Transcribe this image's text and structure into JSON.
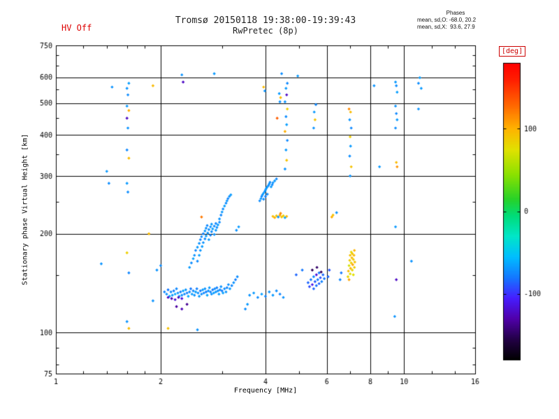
{
  "header": {
    "hv_status": "HV Off",
    "title_line1": "Tromsø 20150118 19:38:00-19:39:43",
    "title_line2": "RwPretec (8p)",
    "phases_title": "Phases",
    "phases_o": "mean, sd,O: -68.0, 20.2",
    "phases_x": "mean, sd,X:  93.6, 27.9"
  },
  "chart_data": {
    "type": "scatter",
    "title": "Tromsø 20150118 19:38:00-19:39:43  RwPretec (8p)",
    "xlabel": "Frequency [MHz]",
    "ylabel": "Stationary phase Virtual Height [km]",
    "x_scale": "log",
    "y_scale": "log",
    "xlim": [
      1,
      16
    ],
    "ylim": [
      75,
      750
    ],
    "x_ticks": [
      1,
      2,
      4,
      6,
      8,
      10,
      16
    ],
    "y_ticks": [
      75,
      100,
      200,
      300,
      400,
      500,
      600,
      750
    ],
    "x_gridlines": [
      2,
      4,
      6,
      8,
      10
    ],
    "y_gridlines": [
      100,
      200,
      300,
      400,
      500,
      600
    ],
    "x_minor": [
      1.2,
      1.4,
      1.6,
      1.8,
      3,
      5,
      7,
      9,
      12,
      14
    ],
    "y_minor": [
      80,
      90,
      150,
      250,
      350,
      450,
      550,
      650,
      700
    ],
    "grid": true,
    "marker": "diamond",
    "colorbar": {
      "label": "[deg]",
      "label_color": "#cc0000",
      "min": -180,
      "max": 180,
      "ticks": [
        100,
        0,
        -100
      ]
    },
    "point_format": [
      "frequency_MHz",
      "virtual_height_km",
      "phase_deg"
    ],
    "points": [
      [
        2.05,
        133,
        -75
      ],
      [
        2.08,
        131,
        -70
      ],
      [
        2.1,
        135,
        -80
      ],
      [
        2.12,
        129,
        -65
      ],
      [
        2.14,
        133,
        -72
      ],
      [
        2.16,
        130,
        -68
      ],
      [
        2.18,
        134,
        -78
      ],
      [
        2.2,
        131,
        -62
      ],
      [
        2.22,
        136,
        -74
      ],
      [
        2.24,
        132,
        -70
      ],
      [
        2.26,
        129,
        -66
      ],
      [
        2.28,
        133,
        -76
      ],
      [
        2.3,
        130,
        -71
      ],
      [
        2.32,
        134,
        -64
      ],
      [
        2.34,
        131,
        -73
      ],
      [
        2.36,
        135,
        -69
      ],
      [
        2.38,
        132,
        -77
      ],
      [
        2.4,
        129,
        -63
      ],
      [
        2.42,
        133,
        -72
      ],
      [
        2.44,
        136,
        -80
      ],
      [
        2.46,
        131,
        -67
      ],
      [
        2.48,
        134,
        -74
      ],
      [
        2.5,
        130,
        -70
      ],
      [
        2.52,
        133,
        -65
      ],
      [
        2.54,
        136,
        -76
      ],
      [
        2.56,
        132,
        -71
      ],
      [
        2.58,
        129,
        -68
      ],
      [
        2.6,
        134,
        -79
      ],
      [
        2.62,
        131,
        -72
      ],
      [
        2.64,
        135,
        -66
      ],
      [
        2.66,
        132,
        -74
      ],
      [
        2.68,
        136,
        -70
      ],
      [
        2.7,
        133,
        -77
      ],
      [
        2.72,
        130,
        -64
      ],
      [
        2.74,
        134,
        -71
      ],
      [
        2.76,
        137,
        -68
      ],
      [
        2.78,
        133,
        -75
      ],
      [
        2.8,
        131,
        -70
      ],
      [
        2.82,
        135,
        -78
      ],
      [
        2.84,
        132,
        -66
      ],
      [
        2.86,
        136,
        -73
      ],
      [
        2.88,
        133,
        -69
      ],
      [
        2.9,
        137,
        -76
      ],
      [
        2.92,
        134,
        -71
      ],
      [
        2.94,
        131,
        -67
      ],
      [
        2.96,
        135,
        -74
      ],
      [
        2.98,
        138,
        -70
      ],
      [
        3.0,
        134,
        -78
      ],
      [
        3.02,
        132,
        -65
      ],
      [
        3.05,
        136,
        -72
      ],
      [
        3.08,
        133,
        -69
      ],
      [
        3.1,
        137,
        -75
      ],
      [
        3.13,
        140,
        -71
      ],
      [
        3.16,
        136,
        -67
      ],
      [
        3.2,
        139,
        -74
      ],
      [
        3.24,
        142,
        -70
      ],
      [
        3.28,
        145,
        -77
      ],
      [
        3.32,
        148,
        -72
      ],
      [
        2.1,
        128,
        -122
      ],
      [
        2.15,
        127,
        -128
      ],
      [
        2.2,
        126,
        -118
      ],
      [
        2.25,
        128,
        -124
      ],
      [
        2.3,
        127,
        -115
      ],
      [
        2.22,
        120,
        -132
      ],
      [
        2.3,
        118,
        -126
      ],
      [
        2.38,
        122,
        -136
      ],
      [
        2.42,
        158,
        -68
      ],
      [
        2.45,
        163,
        -72
      ],
      [
        2.48,
        168,
        -65
      ],
      [
        2.5,
        172,
        -70
      ],
      [
        2.52,
        178,
        -75
      ],
      [
        2.55,
        182,
        -68
      ],
      [
        2.55,
        165,
        -73
      ],
      [
        2.58,
        187,
        -70
      ],
      [
        2.58,
        172,
        -66
      ],
      [
        2.6,
        192,
        -74
      ],
      [
        2.6,
        178,
        -69
      ],
      [
        2.62,
        196,
        -72
      ],
      [
        2.63,
        183,
        -67
      ],
      [
        2.65,
        200,
        -75
      ],
      [
        2.65,
        188,
        -70
      ],
      [
        2.68,
        204,
        -68
      ],
      [
        2.68,
        193,
        -73
      ],
      [
        2.7,
        208,
        -71
      ],
      [
        2.7,
        197,
        -66
      ],
      [
        2.72,
        212,
        -74
      ],
      [
        2.73,
        201,
        -69
      ],
      [
        2.75,
        206,
        -72
      ],
      [
        2.75,
        192,
        -67
      ],
      [
        2.78,
        210,
        -70
      ],
      [
        2.78,
        198,
        -75
      ],
      [
        2.8,
        214,
        -68
      ],
      [
        2.8,
        203,
        -72
      ],
      [
        2.82,
        207,
        -66
      ],
      [
        2.85,
        211,
        -73
      ],
      [
        2.85,
        199,
        -70
      ],
      [
        2.88,
        215,
        -74
      ],
      [
        2.88,
        205,
        -68
      ],
      [
        2.9,
        209,
        -71
      ],
      [
        2.92,
        213,
        -67
      ],
      [
        2.95,
        217,
        -72
      ],
      [
        2.95,
        222,
        -70
      ],
      [
        2.98,
        228,
        -74
      ],
      [
        3.0,
        233,
        -68
      ],
      [
        3.02,
        238,
        -72
      ],
      [
        3.05,
        243,
        -66
      ],
      [
        3.08,
        248,
        -73
      ],
      [
        3.1,
        252,
        -69
      ],
      [
        3.12,
        256,
        -75
      ],
      [
        3.15,
        260,
        -70
      ],
      [
        3.18,
        263,
        -67
      ],
      [
        3.85,
        252,
        -72
      ],
      [
        3.88,
        256,
        -68
      ],
      [
        3.9,
        260,
        -74
      ],
      [
        3.92,
        263,
        -70
      ],
      [
        3.95,
        266,
        -66
      ],
      [
        3.95,
        255,
        -73
      ],
      [
        3.98,
        269,
        -71
      ],
      [
        4.0,
        272,
        -68
      ],
      [
        4.0,
        260,
        -75
      ],
      [
        4.02,
        275,
        -70
      ],
      [
        4.05,
        278,
        -66
      ],
      [
        4.05,
        264,
        -72
      ],
      [
        4.08,
        281,
        -74
      ],
      [
        4.1,
        284,
        -69
      ],
      [
        4.12,
        287,
        -72
      ],
      [
        4.15,
        278,
        -67
      ],
      [
        4.18,
        282,
        -73
      ],
      [
        4.2,
        286,
        -70
      ],
      [
        4.25,
        290,
        -68
      ],
      [
        4.3,
        294,
        -74
      ],
      [
        4.2,
        226,
        95
      ],
      [
        4.25,
        224,
        102
      ],
      [
        4.3,
        227,
        88
      ],
      [
        4.35,
        225,
        -70
      ],
      [
        4.4,
        228,
        108
      ],
      [
        4.45,
        225,
        92
      ],
      [
        4.5,
        227,
        85
      ],
      [
        4.55,
        224,
        -65
      ],
      [
        4.6,
        226,
        98
      ],
      [
        4.42,
        231,
        115
      ],
      [
        1.6,
        108,
        -70
      ],
      [
        1.62,
        103,
        96
      ],
      [
        1.62,
        152,
        -75
      ],
      [
        1.6,
        175,
        85
      ],
      [
        1.61,
        268,
        -72
      ],
      [
        1.6,
        285,
        -68
      ],
      [
        1.62,
        340,
        96
      ],
      [
        1.6,
        360,
        -74
      ],
      [
        1.61,
        420,
        -70
      ],
      [
        1.6,
        450,
        -122
      ],
      [
        1.62,
        475,
        102
      ],
      [
        1.6,
        490,
        -68
      ],
      [
        1.61,
        530,
        -73
      ],
      [
        1.6,
        555,
        -70
      ],
      [
        1.62,
        575,
        -66
      ],
      [
        5.3,
        142,
        -85
      ],
      [
        5.35,
        138,
        -92
      ],
      [
        5.4,
        145,
        -80
      ],
      [
        5.45,
        140,
        -112
      ],
      [
        5.5,
        136,
        -85
      ],
      [
        5.5,
        148,
        -75
      ],
      [
        5.55,
        143,
        -88
      ],
      [
        5.6,
        139,
        -82
      ],
      [
        5.6,
        150,
        -116
      ],
      [
        5.65,
        145,
        -78
      ],
      [
        5.7,
        141,
        -86
      ],
      [
        5.7,
        152,
        -80
      ],
      [
        5.75,
        147,
        -92
      ],
      [
        5.8,
        143,
        -76
      ],
      [
        5.85,
        150,
        -84
      ],
      [
        5.9,
        146,
        -80
      ],
      [
        5.45,
        155,
        -150
      ],
      [
        5.62,
        158,
        -146
      ],
      [
        5.78,
        153,
        -148
      ],
      [
        5.5,
        420,
        -70
      ],
      [
        5.55,
        445,
        92
      ],
      [
        5.52,
        470,
        -68
      ],
      [
        5.58,
        495,
        -74
      ],
      [
        6.9,
        148,
        80
      ],
      [
        6.92,
        154,
        96
      ],
      [
        6.95,
        160,
        70
      ],
      [
        6.95,
        145,
        106
      ],
      [
        6.98,
        166,
        88
      ],
      [
        7.0,
        151,
        75
      ],
      [
        7.0,
        172,
        92
      ],
      [
        7.02,
        157,
        100
      ],
      [
        7.05,
        163,
        85
      ],
      [
        7.05,
        176,
        78
      ],
      [
        7.08,
        169,
        96
      ],
      [
        7.1,
        155,
        82
      ],
      [
        7.1,
        174,
        90
      ],
      [
        7.12,
        161,
        106
      ],
      [
        7.15,
        167,
        88
      ],
      [
        7.15,
        150,
        75
      ],
      [
        7.18,
        172,
        96
      ],
      [
        7.2,
        158,
        85
      ],
      [
        7.2,
        178,
        100
      ],
      [
        7.22,
        164,
        92
      ],
      [
        7.0,
        300,
        -70
      ],
      [
        7.05,
        320,
        92
      ],
      [
        6.98,
        345,
        -72
      ],
      [
        7.02,
        370,
        -68
      ],
      [
        7.0,
        395,
        86
      ],
      [
        7.05,
        420,
        -74
      ],
      [
        6.98,
        445,
        -70
      ],
      [
        7.02,
        470,
        96
      ],
      [
        6.95,
        480,
        116
      ],
      [
        9.4,
        112,
        -70
      ],
      [
        9.5,
        145,
        -122
      ],
      [
        9.45,
        210,
        -68
      ],
      [
        9.55,
        320,
        112
      ],
      [
        9.5,
        330,
        96
      ],
      [
        9.45,
        420,
        -72
      ],
      [
        9.55,
        445,
        -68
      ],
      [
        9.5,
        465,
        -74
      ],
      [
        9.45,
        490,
        -70
      ],
      [
        9.55,
        540,
        -66
      ],
      [
        9.5,
        565,
        -72
      ],
      [
        9.45,
        580,
        -68
      ],
      [
        11.0,
        480,
        -70
      ],
      [
        11.2,
        555,
        -68
      ],
      [
        11.0,
        575,
        -72
      ],
      [
        11.1,
        598,
        -66
      ],
      [
        4.55,
        315,
        -70
      ],
      [
        4.6,
        335,
        92
      ],
      [
        4.58,
        360,
        -68
      ],
      [
        4.62,
        385,
        -74
      ],
      [
        4.55,
        410,
        102
      ],
      [
        4.6,
        430,
        -66
      ],
      [
        4.58,
        455,
        -72
      ],
      [
        4.62,
        480,
        86
      ],
      [
        4.55,
        505,
        -70
      ],
      [
        4.6,
        530,
        -122
      ],
      [
        4.58,
        555,
        -68
      ],
      [
        4.62,
        575,
        -74
      ],
      [
        2.3,
        610,
        -70
      ],
      [
        2.32,
        580,
        -122
      ],
      [
        2.85,
        615,
        -68
      ],
      [
        3.95,
        560,
        96
      ],
      [
        3.98,
        545,
        -70
      ],
      [
        4.45,
        615,
        -72
      ],
      [
        4.95,
        605,
        -68
      ],
      [
        4.4,
        505,
        -70
      ],
      [
        4.42,
        520,
        96
      ],
      [
        4.38,
        535,
        -68
      ],
      [
        3.6,
        130,
        -70
      ],
      [
        3.7,
        132,
        -68
      ],
      [
        3.8,
        128,
        -72
      ],
      [
        3.9,
        131,
        -66
      ],
      [
        4.0,
        129,
        -74
      ],
      [
        4.1,
        133,
        -70
      ],
      [
        4.2,
        130,
        -68
      ],
      [
        4.3,
        134,
        -72
      ],
      [
        4.4,
        131,
        -75
      ],
      [
        4.5,
        128,
        -70
      ],
      [
        1.35,
        162,
        -70
      ],
      [
        1.4,
        310,
        -68
      ],
      [
        1.42,
        285,
        -72
      ],
      [
        1.85,
        200,
        96
      ],
      [
        1.9,
        125,
        -70
      ],
      [
        2.1,
        103,
        92
      ],
      [
        2.55,
        102,
        -70
      ],
      [
        3.5,
        118,
        -72
      ],
      [
        3.55,
        122,
        -68
      ],
      [
        4.9,
        150,
        -85
      ],
      [
        5.1,
        155,
        -80
      ],
      [
        6.2,
        225,
        102
      ],
      [
        6.25,
        228,
        92
      ],
      [
        6.4,
        232,
        -70
      ],
      [
        8.2,
        565,
        -70
      ],
      [
        8.5,
        320,
        -68
      ],
      [
        10.5,
        165,
        -70
      ],
      [
        6.55,
        145,
        -75
      ],
      [
        6.6,
        152,
        -80
      ],
      [
        6.05,
        148,
        -85
      ],
      [
        6.1,
        155,
        -90
      ],
      [
        2.62,
        225,
        122
      ],
      [
        4.32,
        450,
        132
      ],
      [
        1.45,
        560,
        -70
      ],
      [
        1.9,
        565,
        96
      ],
      [
        3.3,
        205,
        -70
      ],
      [
        3.35,
        210,
        -68
      ],
      [
        2.0,
        160,
        -72
      ],
      [
        1.95,
        155,
        -70
      ]
    ]
  }
}
